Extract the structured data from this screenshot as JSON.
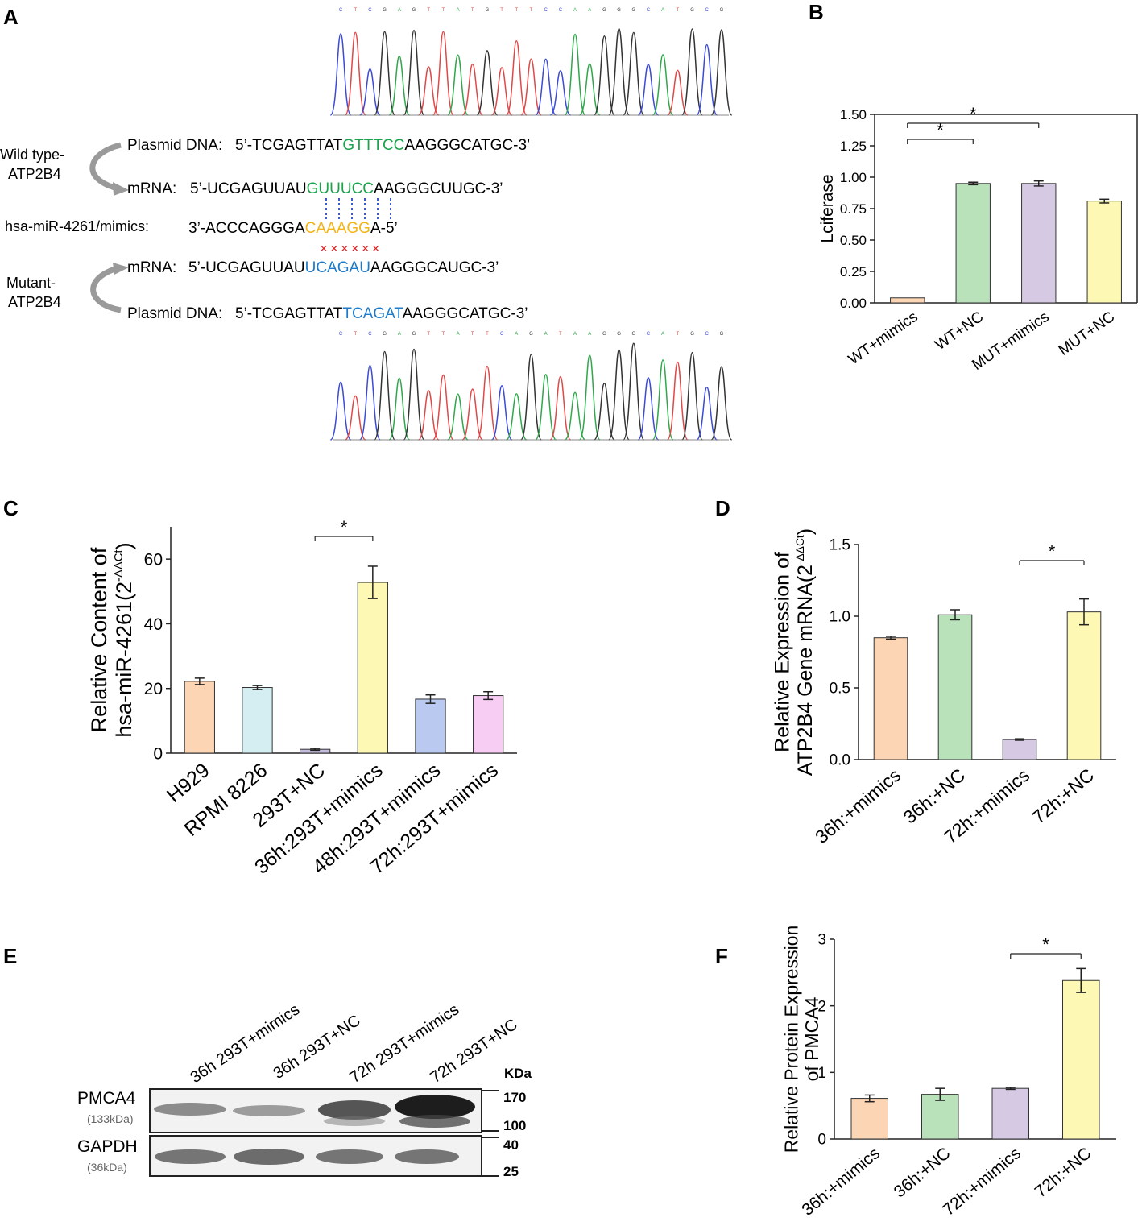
{
  "panel_labels": [
    "A",
    "B",
    "C",
    "D",
    "E",
    "F"
  ],
  "panelA": {
    "chrom_top_letters": "CTCGAGTTATGTTTCCAAGGGCATGCG",
    "chrom_bot_letters": "CTCGAGTTATTCAGATAAGGGCATGCG",
    "wild_type_label": [
      "Wild type-",
      "ATP2B4"
    ],
    "mutant_label": [
      "Mutant-",
      "ATP2B4"
    ],
    "wt_plasmid": {
      "label": "Plasmid  DNA:",
      "pre": "5’-TCGAGTTAT",
      "mid": "GTTTCC",
      "post": "AAGGGCATGC-3’"
    },
    "wt_mrna": {
      "label": "mRNA:",
      "pre": "5’-UCGAGUUAU",
      "mid": "GUUUCC",
      "post": "AAGGGCUUGC-3’"
    },
    "mirna": {
      "label": "hsa-miR-4261/mimics:",
      "pre": "3’-ACCCAGGGA",
      "mid": "CAAAGG",
      "post": "A-5’"
    },
    "mismatch": "××××××",
    "mut_mrna": {
      "label": "mRNA:",
      "pre": "5’-UCGAGUUAU",
      "mid": "UCAGAU",
      "post": "AAGGGCAUGC-3’"
    },
    "mut_plasmid": {
      "label": "Plasmid  DNA:",
      "pre": "5’-TCGAGTTAT",
      "mid": "TCAGAT",
      "post": "AAGGGCATGC-3’"
    }
  },
  "chart_data": [
    {
      "id": "B",
      "type": "bar",
      "ylabel": "Lciferase",
      "categories": [
        "WT+mimics",
        "WT+NC",
        "MUT+mimics",
        "MUT+NC"
      ],
      "values": [
        0.04,
        0.95,
        0.95,
        0.81
      ],
      "errors": [
        0.0,
        0.01,
        0.02,
        0.015
      ],
      "colors": [
        "#fcd5b5",
        "#b9e2bb",
        "#d6c9e4",
        "#fdf9b4"
      ],
      "ylim": [
        0,
        1.5
      ],
      "yticks": [
        "0.00",
        "0.25",
        "0.50",
        "0.75",
        "1.00",
        "1.25",
        "1.50"
      ],
      "significance": [
        {
          "from": 0,
          "to": 1,
          "label": "*"
        },
        {
          "from": 0,
          "to": 2,
          "label": "*"
        }
      ]
    },
    {
      "id": "C",
      "type": "bar",
      "ylabel": [
        "Relative Content of",
        "hsa-miR-4261(2",
        "-ΔΔCt",
        ")"
      ],
      "categories": [
        "H929",
        "RPMI 8226",
        "293T+NC",
        "36h:293T+mimics",
        "48h:293T+mimics",
        "72h:293T+mimics"
      ],
      "values": [
        22.2,
        20.3,
        1.2,
        52.8,
        16.7,
        17.8
      ],
      "errors": [
        1.0,
        0.6,
        0.3,
        5.0,
        1.3,
        1.2
      ],
      "colors": [
        "#fcd5b5",
        "#d4eef2",
        "#c4bcdc",
        "#fdf9b4",
        "#b9c9ef",
        "#f8cdf4"
      ],
      "ylim": [
        0,
        70
      ],
      "yticks": [
        "0",
        "20",
        "40",
        "60"
      ],
      "significance": [
        {
          "from": 2,
          "to": 3,
          "label": "*"
        }
      ]
    },
    {
      "id": "D",
      "type": "bar",
      "ylabel": [
        "Relative Expression of",
        "ATP2B4 Gene mRNA(2",
        "-ΔΔCt",
        ")"
      ],
      "categories": [
        "36h:+mimics",
        "36h:+NC",
        "72h:+mimics",
        "72h:+NC"
      ],
      "values": [
        0.85,
        1.01,
        0.14,
        1.03
      ],
      "errors": [
        0.01,
        0.035,
        0.005,
        0.09
      ],
      "colors": [
        "#fcd5b5",
        "#b9e2bb",
        "#d6c9e4",
        "#fdf9b4"
      ],
      "ylim": [
        0,
        1.5
      ],
      "yticks": [
        "0.0",
        "0.5",
        "1.0",
        "1.5"
      ],
      "significance": [
        {
          "from": 2,
          "to": 3,
          "label": "*"
        }
      ]
    },
    {
      "id": "F",
      "type": "bar",
      "ylabel": [
        "Relative Protein Expression",
        "of PMCA4"
      ],
      "categories": [
        "36h:+mimics",
        "36h:+NC",
        "72h:+mimics",
        "72h:+NC"
      ],
      "values": [
        0.61,
        0.67,
        0.76,
        2.38
      ],
      "errors": [
        0.05,
        0.09,
        0.015,
        0.18
      ],
      "colors": [
        "#fcd5b5",
        "#b9e2bb",
        "#d6c9e4",
        "#fdf9b4"
      ],
      "ylim": [
        0,
        3
      ],
      "yticks": [
        "0",
        "1",
        "2",
        "3"
      ],
      "significance": [
        {
          "from": 2,
          "to": 3,
          "label": "*"
        }
      ]
    }
  ],
  "panelE": {
    "lanes": [
      "36h 293T+mimics",
      "36h 293T+NC",
      "72h 293T+mimics",
      "72h 293T+NC"
    ],
    "kda_label": "KDa",
    "markers": [
      "170",
      "100",
      "40",
      "25"
    ],
    "proteins": [
      {
        "name": "PMCA4",
        "size": "(133kDa)"
      },
      {
        "name": "GAPDH",
        "size": "(36kDa)"
      }
    ]
  }
}
